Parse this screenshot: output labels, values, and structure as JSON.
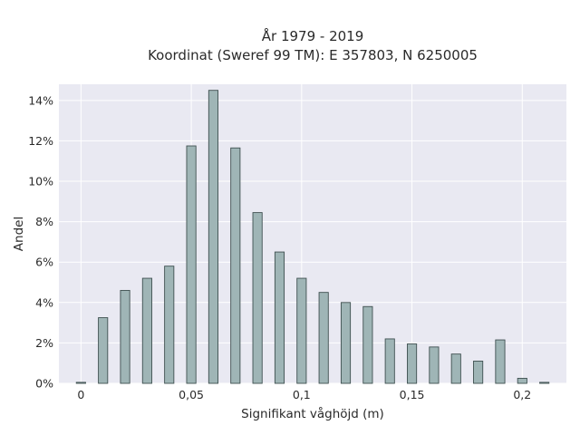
{
  "chart_data": {
    "type": "bar",
    "title": [
      "År 1979 - 2019",
      "Koordinat (Sweref 99 TM): E 357803, N 6250005"
    ],
    "xlabel": "Signifikant våghöjd (m)",
    "ylabel": "Andel",
    "xlim": [
      -0.01,
      0.22
    ],
    "ylim": [
      0,
      14.8
    ],
    "bar_width": 0.0042,
    "x": [
      0.0,
      0.01,
      0.02,
      0.03,
      0.04,
      0.05,
      0.06,
      0.07,
      0.08,
      0.09,
      0.1,
      0.11,
      0.12,
      0.13,
      0.14,
      0.15,
      0.16,
      0.17,
      0.18,
      0.19,
      0.2,
      0.21
    ],
    "values": [
      0.05,
      3.25,
      4.6,
      5.2,
      5.8,
      11.75,
      14.5,
      11.65,
      8.45,
      6.5,
      5.2,
      4.5,
      4.0,
      3.8,
      2.2,
      1.95,
      1.8,
      1.45,
      1.1,
      2.15,
      0.25,
      0.05
    ],
    "x_ticks": [
      0,
      0.05,
      0.1,
      0.15,
      0.2
    ],
    "x_tick_labels": [
      "0",
      "0,05",
      "0,1",
      "0,15",
      "0,2"
    ],
    "y_ticks": [
      0,
      2,
      4,
      6,
      8,
      10,
      12,
      14
    ],
    "y_tick_labels": [
      "0%",
      "2%",
      "4%",
      "6%",
      "8%",
      "10%",
      "12%",
      "14%"
    ],
    "grid": true,
    "colors": {
      "bar_fill": "#9fb5b6",
      "bar_stroke": "#3f5050",
      "plot_bg": "#e9e9f2",
      "grid": "#ffffff"
    }
  }
}
